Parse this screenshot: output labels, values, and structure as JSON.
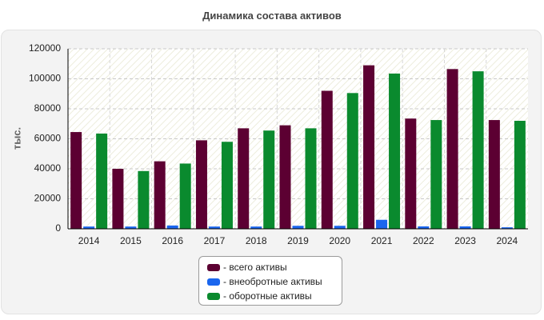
{
  "chart_data": {
    "type": "bar",
    "title": "Динамика состава активов",
    "ylabel": "тыс.",
    "xlabel": "",
    "ylim": [
      0,
      120000
    ],
    "yticks": [
      0,
      20000,
      40000,
      60000,
      80000,
      100000,
      120000
    ],
    "grid": true,
    "legend_position": "bottom",
    "categories": [
      "2014",
      "2015",
      "2016",
      "2017",
      "2018",
      "2019",
      "2020",
      "2021",
      "2022",
      "2023",
      "2024"
    ],
    "series": [
      {
        "name": "- всего активы",
        "color": "#5c0032",
        "values": [
          64500,
          40000,
          45000,
          59000,
          67000,
          69000,
          92000,
          109000,
          73500,
          106500,
          72500
        ]
      },
      {
        "name": "- внеобротные активы",
        "color": "#1a66ee",
        "values": [
          1500,
          1500,
          2200,
          1500,
          1500,
          2000,
          2000,
          6000,
          1600,
          1600,
          1000
        ]
      },
      {
        "name": "- оборотные активы",
        "color": "#0a8a2e",
        "values": [
          63500,
          38500,
          43500,
          58000,
          65500,
          67000,
          90500,
          103500,
          72500,
          105000,
          72000
        ]
      }
    ]
  }
}
